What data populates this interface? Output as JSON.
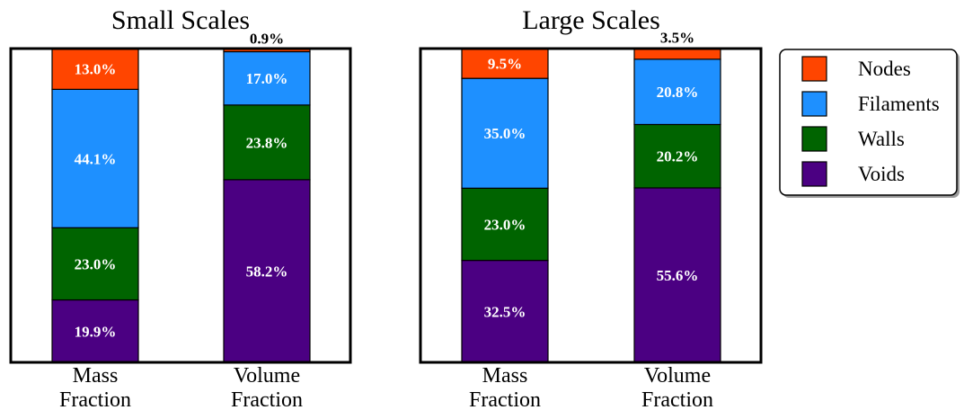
{
  "chart_data": [
    {
      "type": "bar",
      "stacked": true,
      "title": "Small Scales",
      "categories": [
        "Mass\nFraction",
        "Volume\nFraction"
      ],
      "ylim": [
        0,
        100
      ],
      "series": [
        {
          "name": "Voids",
          "values": [
            19.9,
            58.2
          ],
          "labels": [
            "19.9%",
            "58.2%"
          ]
        },
        {
          "name": "Walls",
          "values": [
            23.0,
            23.8
          ],
          "labels": [
            "23.0%",
            "23.8%"
          ]
        },
        {
          "name": "Filaments",
          "values": [
            44.1,
            17.0
          ],
          "labels": [
            "44.1%",
            "17.0%"
          ]
        },
        {
          "name": "Nodes",
          "values": [
            13.0,
            0.9
          ],
          "labels": [
            "13.0%",
            "0.9%"
          ]
        }
      ]
    },
    {
      "type": "bar",
      "stacked": true,
      "title": "Large Scales",
      "categories": [
        "Mass\nFraction",
        "Volume\nFraction"
      ],
      "ylim": [
        0,
        100
      ],
      "series": [
        {
          "name": "Voids",
          "values": [
            32.5,
            55.6
          ],
          "labels": [
            "32.5%",
            "55.6%"
          ]
        },
        {
          "name": "Walls",
          "values": [
            23.0,
            20.2
          ],
          "labels": [
            "23.0%",
            "20.2%"
          ]
        },
        {
          "name": "Filaments",
          "values": [
            35.0,
            20.8
          ],
          "labels": [
            "35.0%",
            "20.8%"
          ]
        },
        {
          "name": "Nodes",
          "values": [
            9.5,
            3.5
          ],
          "labels": [
            "9.5%",
            "3.5%"
          ]
        }
      ]
    }
  ],
  "legend": {
    "position": "top-right",
    "items": [
      {
        "name": "Nodes",
        "color": "#ff4500"
      },
      {
        "name": "Filaments",
        "color": "#1e90ff"
      },
      {
        "name": "Walls",
        "color": "#006400"
      },
      {
        "name": "Voids",
        "color": "#4b0082"
      }
    ]
  },
  "colors": {
    "Nodes": "#ff4500",
    "Filaments": "#1e90ff",
    "Walls": "#006400",
    "Voids": "#4b0082"
  }
}
